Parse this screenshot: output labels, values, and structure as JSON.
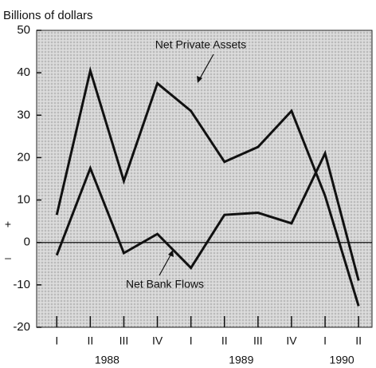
{
  "chart_data": {
    "type": "line",
    "y_axis_label": "Billions of dollars",
    "categories": [
      "I",
      "II",
      "III",
      "IV",
      "I",
      "II",
      "III",
      "IV",
      "I",
      "II"
    ],
    "groups": [
      {
        "label": "1988",
        "count": 4
      },
      {
        "label": "1989",
        "count": 4
      },
      {
        "label": "1990",
        "count": 2
      }
    ],
    "series": [
      {
        "name": "Net Private Assets",
        "color": "#111111",
        "values": [
          6.5,
          40.5,
          14.5,
          37.5,
          31,
          19,
          22.5,
          31,
          11,
          -15
        ]
      },
      {
        "name": "Net Bank Flows",
        "color": "#111111",
        "values": [
          -3,
          17.5,
          -2.5,
          2,
          -6,
          6.5,
          7,
          4.5,
          21,
          -9
        ]
      }
    ],
    "ylim": [
      -20,
      50
    ],
    "yticks": [
      -20,
      -10,
      0,
      10,
      20,
      30,
      40,
      50
    ],
    "sign_labels": [
      "+",
      "–"
    ],
    "grid": false
  }
}
